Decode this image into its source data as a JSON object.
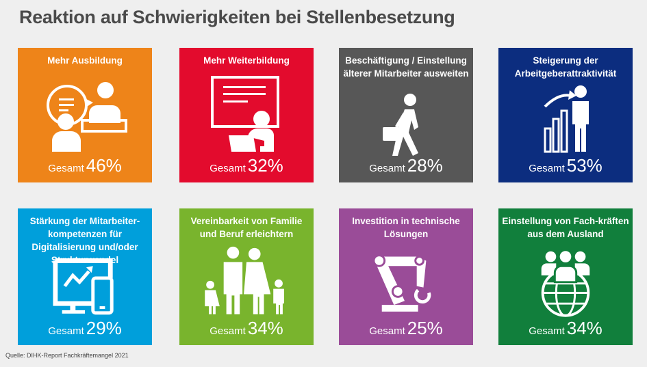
{
  "title": "Reaktion auf Schwierigkeiten bei Stellenbesetzung",
  "total_label": "Gesamt",
  "tiles": [
    {
      "label": "Mehr Ausbildung",
      "value": "46%",
      "color": "#ee8419",
      "icon": "training-conversation-icon"
    },
    {
      "label": "Mehr Weiterbildung",
      "value": "32%",
      "color": "#e30b2d",
      "icon": "presentation-board-icon"
    },
    {
      "label": "Beschäftigung / Einstellung älterer Mitarbeiter ausweiten",
      "value": "28%",
      "color": "#575757",
      "icon": "walking-person-briefcase-icon"
    },
    {
      "label": "Steigerung der Arbeitgeberattraktivität",
      "value": "53%",
      "color": "#0c2d7f",
      "icon": "growth-chart-person-icon"
    },
    {
      "label": "Stärkung der Mitarbeiter-kompetenzen für Digitalisierung und/oder Strukturwandel",
      "value": "29%",
      "color": "#009fdb",
      "icon": "monitor-phone-icon"
    },
    {
      "label": "Vereinbarkeit von Familie und Beruf erleichtern",
      "value": "34%",
      "color": "#79b42d",
      "icon": "family-icon"
    },
    {
      "label": "Investition in technische Lösungen",
      "value": "25%",
      "color": "#9a4c98",
      "icon": "robot-arm-icon"
    },
    {
      "label": "Einstellung von Fach-kräften aus dem Ausland",
      "value": "34%",
      "color": "#117f3c",
      "icon": "globe-people-icon"
    }
  ],
  "source": "Quelle: DIHK-Report Fachkräftemangel 2021"
}
